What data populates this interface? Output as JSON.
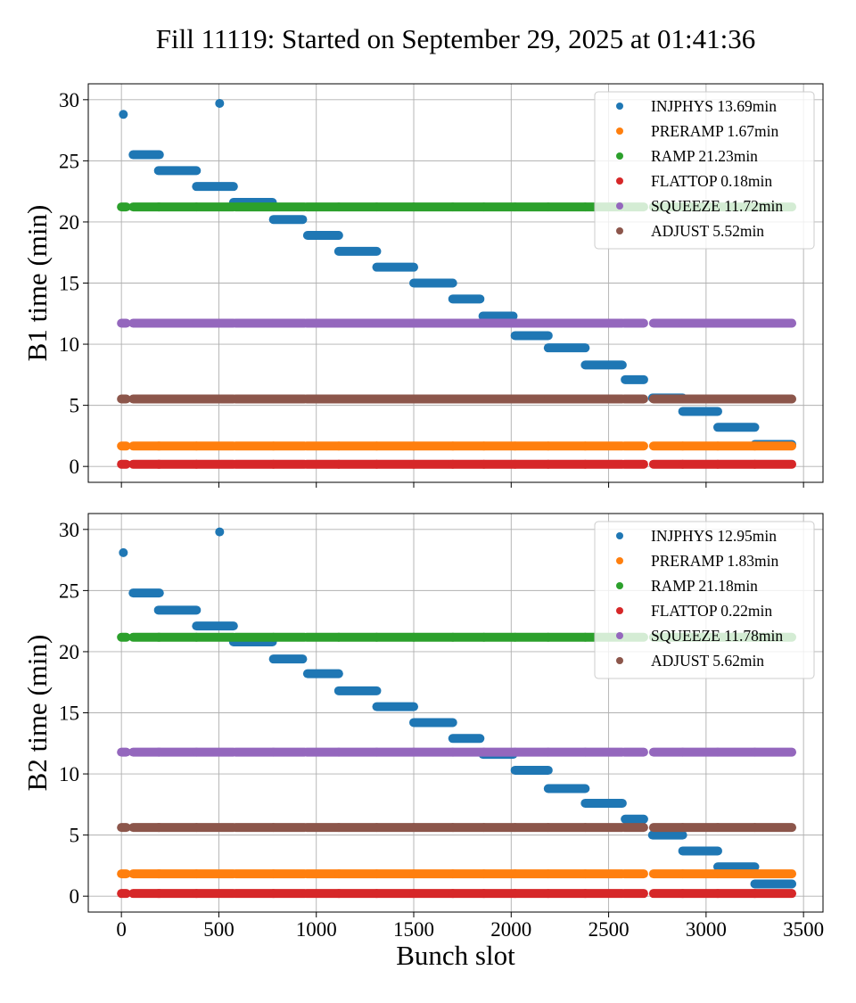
{
  "figure": {
    "suptitle": "Fill 11119: Started on September 29, 2025 at 01:41:36",
    "colors": {
      "INJPHYS": "#1f77b4",
      "PRERAMP": "#ff7f0e",
      "RAMP": "#2ca02c",
      "FLATTOP": "#d62728",
      "SQUEEZE": "#9467bd",
      "ADJUST": "#8c564b"
    },
    "shared_xlabel": "Bunch slot",
    "shared_xticks": [
      "0",
      "500",
      "1000",
      "1500",
      "2000",
      "2500",
      "3000",
      "3500"
    ]
  },
  "chart_data": [
    {
      "type": "scatter",
      "title": "",
      "xlabel": "",
      "ylabel": "B1 time (min)",
      "xlim": [
        -170,
        3600
      ],
      "ylim": [
        -1.3,
        31.3
      ],
      "xticks": [
        0,
        500,
        1000,
        1500,
        2000,
        2500,
        3000,
        3500
      ],
      "yticks": [
        0,
        5,
        10,
        15,
        20,
        25,
        30
      ],
      "ytick_labels": [
        "0",
        "5",
        "10",
        "15",
        "20",
        "25",
        "30"
      ],
      "grid": true,
      "legend_position": "top-right",
      "legend": [
        "INJPHYS 13.69min",
        "PRERAMP 1.67min",
        "RAMP 21.23min",
        "FLATTOP 0.18min",
        "SQUEEZE 11.72min",
        "ADJUST 5.52min"
      ],
      "bunch_groups": [
        [
          0,
          25
        ],
        [
          60,
          195
        ],
        [
          190,
          385
        ],
        [
          385,
          575
        ],
        [
          585,
          780
        ],
        [
          780,
          940
        ],
        [
          950,
          1115
        ],
        [
          1115,
          1310
        ],
        [
          1310,
          1500
        ],
        [
          1500,
          1700
        ],
        [
          1700,
          1860
        ],
        [
          1860,
          2020
        ],
        [
          2020,
          2190
        ],
        [
          2190,
          2380
        ],
        [
          2380,
          2570
        ],
        [
          2580,
          2680
        ],
        [
          2730,
          2880
        ],
        [
          2880,
          3060
        ],
        [
          3060,
          3250
        ],
        [
          3250,
          3440
        ]
      ],
      "series": [
        {
          "name": "INJPHYS",
          "points": [
            [
              10,
              28.8
            ],
            [
              504,
              29.7
            ]
          ],
          "steps": [
            [
              60,
              195,
              25.5
            ],
            [
              190,
              385,
              24.2
            ],
            [
              385,
              575,
              22.9
            ],
            [
              575,
              775,
              21.6
            ],
            [
              780,
              930,
              20.2
            ],
            [
              955,
              1115,
              18.9
            ],
            [
              1115,
              1310,
              17.6
            ],
            [
              1310,
              1500,
              16.3
            ],
            [
              1500,
              1700,
              15.0
            ],
            [
              1700,
              1840,
              13.7
            ],
            [
              1855,
              2010,
              12.3
            ],
            [
              2020,
              2190,
              10.7
            ],
            [
              2190,
              2380,
              9.7
            ],
            [
              2380,
              2570,
              8.3
            ],
            [
              2585,
              2680,
              7.1
            ],
            [
              2725,
              2880,
              5.6
            ],
            [
              2880,
              3060,
              4.5
            ],
            [
              3060,
              3250,
              3.2
            ],
            [
              3250,
              3440,
              1.8
            ]
          ]
        },
        {
          "name": "PRERAMP",
          "value": 1.67
        },
        {
          "name": "RAMP",
          "value": 21.23
        },
        {
          "name": "FLATTOP",
          "value": 0.18
        },
        {
          "name": "SQUEEZE",
          "value": 11.72
        },
        {
          "name": "ADJUST",
          "value": 5.52
        }
      ]
    },
    {
      "type": "scatter",
      "title": "",
      "xlabel": "Bunch slot",
      "ylabel": "B2 time (min)",
      "xlim": [
        -170,
        3600
      ],
      "ylim": [
        -1.3,
        31.3
      ],
      "xticks": [
        0,
        500,
        1000,
        1500,
        2000,
        2500,
        3000,
        3500
      ],
      "xtick_labels": [
        "0",
        "500",
        "1000",
        "1500",
        "2000",
        "2500",
        "3000",
        "3500"
      ],
      "yticks": [
        0,
        5,
        10,
        15,
        20,
        25,
        30
      ],
      "ytick_labels": [
        "0",
        "5",
        "10",
        "15",
        "20",
        "25",
        "30"
      ],
      "grid": true,
      "legend_position": "top-right",
      "legend": [
        "INJPHYS 12.95min",
        "PRERAMP 1.83min",
        "RAMP 21.18min",
        "FLATTOP 0.22min",
        "SQUEEZE 11.78min",
        "ADJUST 5.62min"
      ],
      "bunch_groups": [
        [
          0,
          25
        ],
        [
          60,
          195
        ],
        [
          190,
          385
        ],
        [
          385,
          575
        ],
        [
          585,
          780
        ],
        [
          780,
          940
        ],
        [
          950,
          1115
        ],
        [
          1115,
          1310
        ],
        [
          1310,
          1500
        ],
        [
          1500,
          1700
        ],
        [
          1700,
          1860
        ],
        [
          1860,
          2020
        ],
        [
          2020,
          2190
        ],
        [
          2190,
          2380
        ],
        [
          2380,
          2570
        ],
        [
          2580,
          2680
        ],
        [
          2730,
          2880
        ],
        [
          2880,
          3060
        ],
        [
          3060,
          3250
        ],
        [
          3250,
          3440
        ]
      ],
      "series": [
        {
          "name": "INJPHYS",
          "points": [
            [
              10,
              28.1
            ],
            [
              504,
              29.8
            ]
          ],
          "steps": [
            [
              60,
              195,
              24.8
            ],
            [
              190,
              385,
              23.4
            ],
            [
              385,
              575,
              22.1
            ],
            [
              575,
              775,
              20.8
            ],
            [
              780,
              930,
              19.4
            ],
            [
              955,
              1115,
              18.2
            ],
            [
              1115,
              1310,
              16.8
            ],
            [
              1310,
              1500,
              15.5
            ],
            [
              1500,
              1700,
              14.2
            ],
            [
              1700,
              1840,
              12.9
            ],
            [
              1855,
              2010,
              11.6
            ],
            [
              2020,
              2190,
              10.3
            ],
            [
              2190,
              2380,
              8.8
            ],
            [
              2380,
              2570,
              7.6
            ],
            [
              2585,
              2680,
              6.3
            ],
            [
              2725,
              2880,
              5.0
            ],
            [
              2880,
              3060,
              3.7
            ],
            [
              3060,
              3250,
              2.4
            ],
            [
              3250,
              3440,
              1.0
            ]
          ]
        },
        {
          "name": "PRERAMP",
          "value": 1.83
        },
        {
          "name": "RAMP",
          "value": 21.18
        },
        {
          "name": "FLATTOP",
          "value": 0.22
        },
        {
          "name": "SQUEEZE",
          "value": 11.78
        },
        {
          "name": "ADJUST",
          "value": 5.62
        }
      ]
    }
  ]
}
